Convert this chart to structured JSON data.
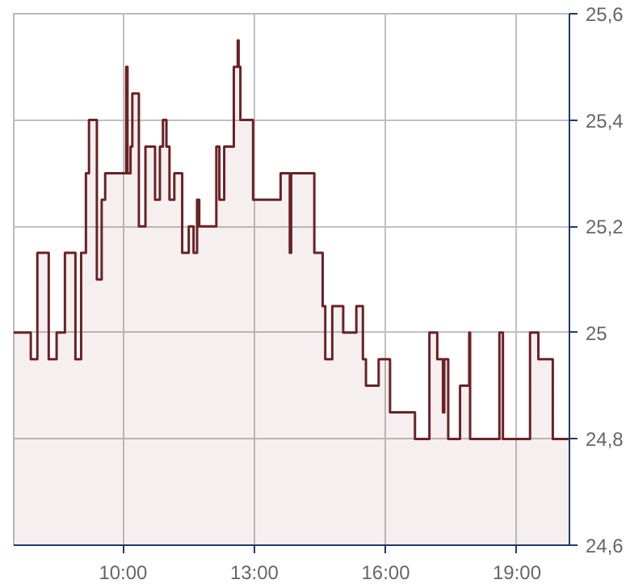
{
  "chart_data": {
    "type": "area",
    "x": [
      7.5,
      7.89,
      7.89,
      8.04,
      8.04,
      8.3,
      8.3,
      8.48,
      8.48,
      8.67,
      8.67,
      8.91,
      8.91,
      9.04,
      9.04,
      9.15,
      9.15,
      9.22,
      9.22,
      9.4,
      9.4,
      9.51,
      9.51,
      9.59,
      9.59,
      10.07,
      10.07,
      10.1,
      10.1,
      10.17,
      10.17,
      10.21,
      10.21,
      10.36,
      10.36,
      10.51,
      10.51,
      10.73,
      10.73,
      10.84,
      10.84,
      10.91,
      10.91,
      10.99,
      10.99,
      11.06,
      11.06,
      11.17,
      11.17,
      11.35,
      11.35,
      11.5,
      11.5,
      11.61,
      11.61,
      11.69,
      11.69,
      11.74,
      11.74,
      12.13,
      12.13,
      12.2,
      12.2,
      12.31,
      12.31,
      12.53,
      12.53,
      12.62,
      12.62,
      12.64,
      12.64,
      12.68,
      12.68,
      12.97,
      12.97,
      13.6,
      13.6,
      13.81,
      13.81,
      13.84,
      13.84,
      14.37,
      14.37,
      14.56,
      14.56,
      14.62,
      14.62,
      14.78,
      14.78,
      15.03,
      15.03,
      15.33,
      15.33,
      15.48,
      15.48,
      15.55,
      15.55,
      15.84,
      15.84,
      16.1,
      16.1,
      16.67,
      16.67,
      17.0,
      17.0,
      17.18,
      17.18,
      17.31,
      17.31,
      17.34,
      17.34,
      17.43,
      17.43,
      17.7,
      17.7,
      17.91,
      17.91,
      17.93,
      17.93,
      18.6,
      18.6,
      18.68,
      18.68,
      19.3,
      19.3,
      19.49,
      19.49,
      19.82,
      19.82,
      20.18
    ],
    "series": [
      {
        "color": "#6b2226",
        "values": [
          25.0,
          25.0,
          24.95,
          24.95,
          25.15,
          25.15,
          24.95,
          24.95,
          25.0,
          25.0,
          25.15,
          25.15,
          24.95,
          24.95,
          25.15,
          25.15,
          25.3,
          25.3,
          25.4,
          25.4,
          25.1,
          25.1,
          25.25,
          25.25,
          25.3,
          25.3,
          25.5,
          25.5,
          25.3,
          25.3,
          25.35,
          25.35,
          25.45,
          25.45,
          25.2,
          25.2,
          25.35,
          25.35,
          25.25,
          25.25,
          25.35,
          25.35,
          25.4,
          25.4,
          25.35,
          25.35,
          25.25,
          25.25,
          25.3,
          25.3,
          25.15,
          25.15,
          25.2,
          25.2,
          25.15,
          25.15,
          25.25,
          25.25,
          25.2,
          25.2,
          25.35,
          25.35,
          25.25,
          25.25,
          25.35,
          25.35,
          25.5,
          25.5,
          25.55,
          25.55,
          25.5,
          25.5,
          25.4,
          25.4,
          25.25,
          25.25,
          25.3,
          25.3,
          25.15,
          25.15,
          25.3,
          25.3,
          25.15,
          25.15,
          25.05,
          25.05,
          24.95,
          24.95,
          25.05,
          25.05,
          25.0,
          25.0,
          25.05,
          25.05,
          24.95,
          24.95,
          24.9,
          24.9,
          24.95,
          24.95,
          24.85,
          24.85,
          24.8,
          24.8,
          25.0,
          25.0,
          24.95,
          24.95,
          24.85,
          24.85,
          24.95,
          24.95,
          24.8,
          24.8,
          24.9,
          24.9,
          25.0,
          25.0,
          24.8,
          24.8,
          25.0,
          25.0,
          24.8,
          24.8,
          25.0,
          25.0,
          24.95,
          24.95,
          24.8,
          24.8
        ]
      }
    ],
    "xlim": [
      7.5,
      20.2
    ],
    "xticks": [
      {
        "value": 10,
        "label": "10:00"
      },
      {
        "value": 13,
        "label": "13:00"
      },
      {
        "value": 16,
        "label": "16:00"
      },
      {
        "value": 19,
        "label": "19:00"
      }
    ],
    "ylim": [
      24.6,
      25.6
    ],
    "yticks": [
      {
        "value": 24.6,
        "label": "24,6"
      },
      {
        "value": 24.8,
        "label": "24,8"
      },
      {
        "value": 25,
        "label": "25"
      },
      {
        "value": 25.2,
        "label": "25,2"
      },
      {
        "value": 25.4,
        "label": "25,4"
      },
      {
        "value": 25.6,
        "label": "25,6"
      }
    ],
    "grid": true
  }
}
